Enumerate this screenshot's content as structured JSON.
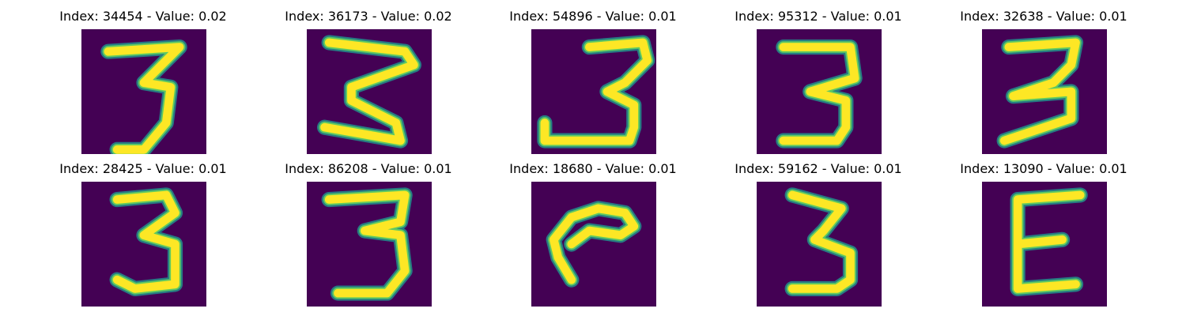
{
  "colors": {
    "background": "#440154",
    "stroke_outer": "#21918c",
    "stroke_mid": "#5ec962",
    "stroke_core": "#fde725",
    "title_text": "#000000"
  },
  "panels": [
    {
      "title": "Index: 34454 - Value: 0.02",
      "glyph": "digit-3"
    },
    {
      "title": "Index: 36173 - Value: 0.02",
      "glyph": "digit-3"
    },
    {
      "title": "Index: 54896 - Value: 0.01",
      "glyph": "digit-3"
    },
    {
      "title": "Index: 95312 - Value: 0.01",
      "glyph": "digit-3"
    },
    {
      "title": "Index: 32638 - Value: 0.01",
      "glyph": "digit-3"
    },
    {
      "title": "Index: 28425 - Value: 0.01",
      "glyph": "digit-3"
    },
    {
      "title": "Index: 86208 - Value: 0.01",
      "glyph": "digit-3"
    },
    {
      "title": "Index: 18680 - Value: 0.01",
      "glyph": "curve"
    },
    {
      "title": "Index: 59162 - Value: 0.01",
      "glyph": "digit-3"
    },
    {
      "title": "Index: 13090 - Value: 0.01",
      "glyph": "letter-E"
    }
  ]
}
